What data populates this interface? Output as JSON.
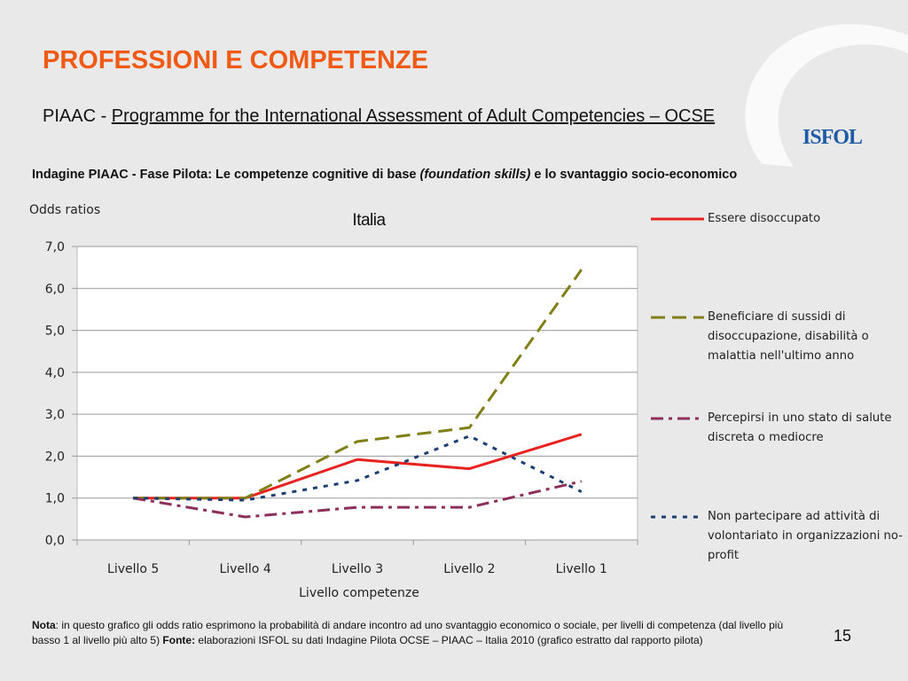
{
  "header": {
    "title": "PROFESSIONI E COMPETENZE",
    "subtitle_prefix": "PIAAC - ",
    "subtitle_em": "Programme for the International Assessment of Adult Competencies – OCSE",
    "survey_a": "Indagine PIAAC - Fase Pilota: Le competenze cognitive di base ",
    "survey_b": "(foundation skills)",
    "survey_c": " e lo svantaggio socio-economico"
  },
  "logo": {
    "text": "ISFOL"
  },
  "chart_data": {
    "type": "line",
    "title": "Italia",
    "ylabel": "Odds ratios",
    "xlabel": "Livello competenze",
    "categories": [
      "Livello 5",
      "Livello 4",
      "Livello 3",
      "Livello 2",
      "Livello 1"
    ],
    "ylim": [
      0,
      7
    ],
    "yticks": [
      "0,0",
      "1,0",
      "2,0",
      "3,0",
      "4,0",
      "5,0",
      "6,0",
      "7,0"
    ],
    "grid": true,
    "legend_position": "right",
    "series": [
      {
        "name": "Essere disoccupato",
        "values": [
          1.0,
          1.0,
          1.92,
          1.7,
          2.52
        ],
        "color": "#e8231f",
        "dash": "solid"
      },
      {
        "name": "Beneficiare di sussidi di disoccupazione, disabilità o malattia nell'ultimo anno",
        "values": [
          1.0,
          1.0,
          2.35,
          2.68,
          6.45
        ],
        "color": "#7f7f16",
        "dash": "long-dash"
      },
      {
        "name": "Percepirsi in uno stato di salute discreta o mediocre",
        "values": [
          1.0,
          0.55,
          0.78,
          0.78,
          1.4
        ],
        "color": "#8e2e5a",
        "dash": "dash-dot"
      },
      {
        "name": "Non partecipare ad attività di volontariato in organizzazioni no-profit",
        "values": [
          1.0,
          0.95,
          1.42,
          2.48,
          1.15
        ],
        "color": "#1a3f70",
        "dash": "dot"
      }
    ]
  },
  "footer": {
    "nota_label": "Nota",
    "nota_text": ": in questo grafico gli odds ratio esprimono la probabilità di andare incontro ad uno svantaggio economico o sociale, per livelli di competenza (dal livello più basso 1 al livello più alto 5) ",
    "fonte_label": "Fonte:",
    "fonte_text": " elaborazioni ISFOL su dati Indagine Pilota OCSE – PIAAC – Italia 2010  (grafico estratto dal rapporto pilota)",
    "page_number": "15"
  }
}
